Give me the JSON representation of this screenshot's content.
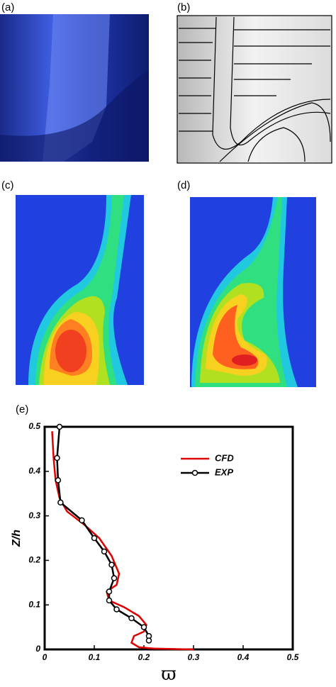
{
  "panel_labels": [
    "(a)",
    "(b)",
    "(c)",
    "(d)",
    "(e)"
  ],
  "chart_data": {
    "type": "line",
    "xlabel": "ϖ",
    "ylabel": "Z/h",
    "xlim": [
      0,
      0.5
    ],
    "ylim": [
      0,
      0.5
    ],
    "xticks": [
      0,
      0.1,
      0.2,
      0.3,
      0.4,
      0.5
    ],
    "yticks": [
      0,
      0.1,
      0.2,
      0.3,
      0.4,
      0.5
    ],
    "legend": "upper right",
    "series": [
      {
        "name": "CFD",
        "color": "#e00000",
        "markers": false,
        "x": [
          0.015,
          0.018,
          0.022,
          0.03,
          0.045,
          0.08,
          0.11,
          0.135,
          0.15,
          0.145,
          0.125,
          0.13,
          0.16,
          0.19,
          0.205,
          0.2,
          0.18,
          0.175,
          0.19,
          0.22,
          0.3
        ],
        "values": [
          0.49,
          0.43,
          0.38,
          0.34,
          0.31,
          0.28,
          0.25,
          0.21,
          0.17,
          0.145,
          0.13,
          0.11,
          0.095,
          0.075,
          0.055,
          0.04,
          0.03,
          0.015,
          0.005,
          0.002,
          0
        ]
      },
      {
        "name": "EXP",
        "color": "#000000",
        "markers": true,
        "x": [
          0.03,
          0.025,
          0.027,
          0.032,
          0.075,
          0.1,
          0.12,
          0.135,
          0.14,
          0.13,
          0.13,
          0.145,
          0.175,
          0.2,
          0.21,
          0.21
        ],
        "values": [
          0.5,
          0.43,
          0.38,
          0.33,
          0.29,
          0.25,
          0.22,
          0.19,
          0.16,
          0.13,
          0.11,
          0.09,
          0.07,
          0.05,
          0.03,
          0.02
        ]
      }
    ]
  }
}
